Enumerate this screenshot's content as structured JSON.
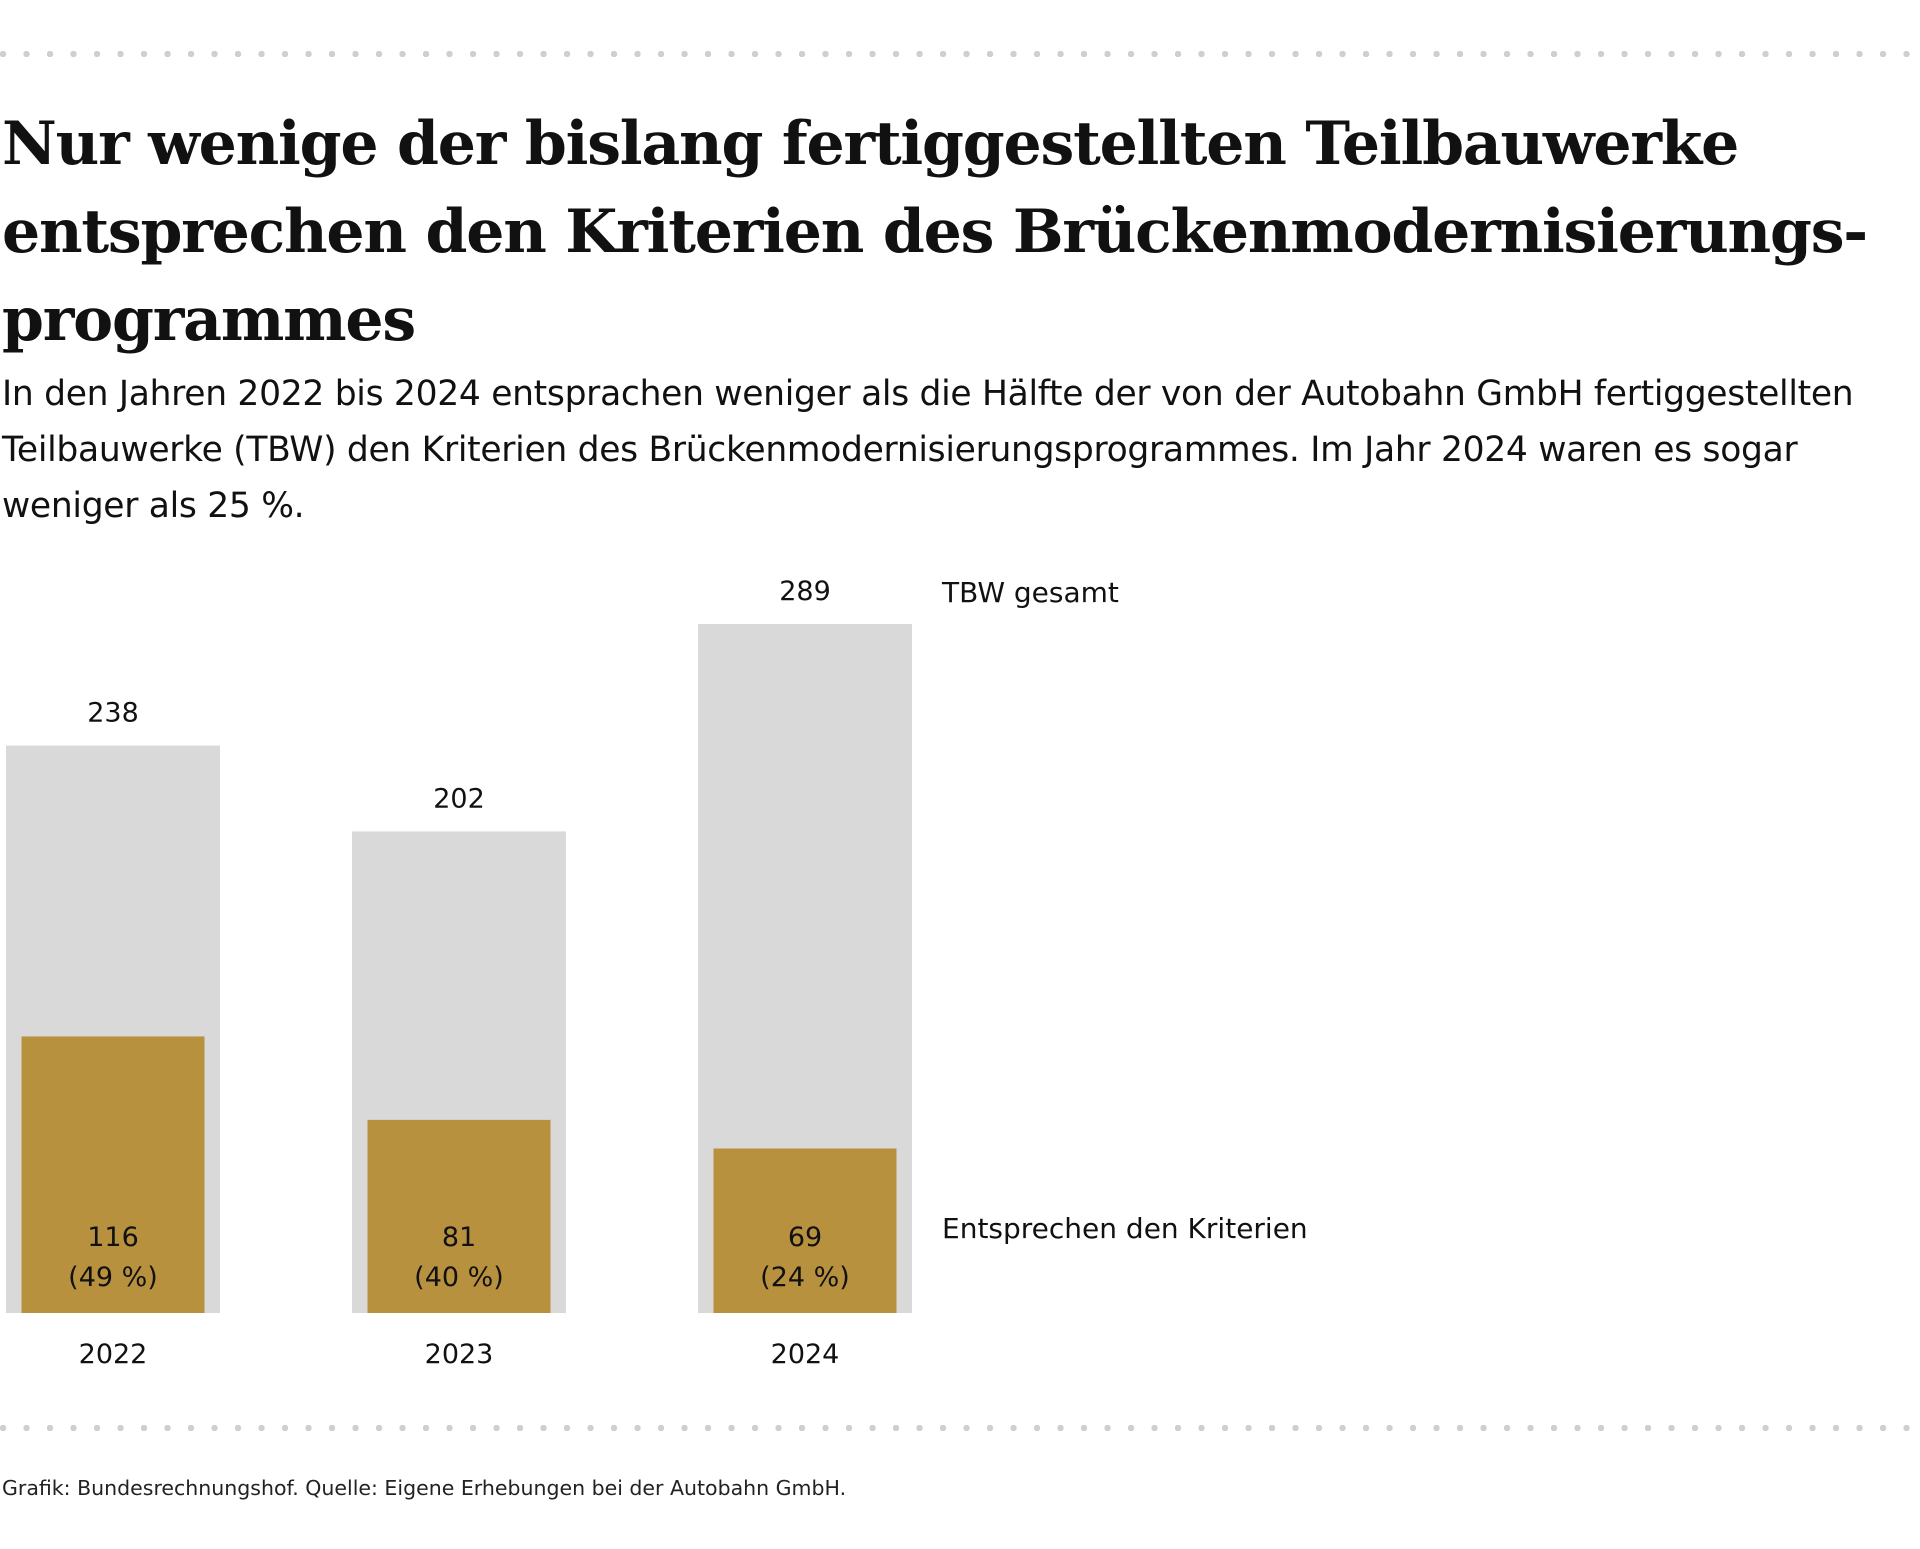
{
  "title": "Nur wenige der bislang fertiggestellten Teilbauwerke entsprechen den Kriterien des Brückenmodernisierungs­programmes",
  "subtitle": "In den Jahren 2022 bis 2024 entsprachen weniger als die Hälfte der von der Autobahn GmbH fertigge­stellten Teilbauwerke (TBW) den Kriterien des Brückenmodernisierungsprogrammes. Im Jahr 2024 waren es sogar weniger als 25 %.",
  "source": "Grafik: Bundesrechnungshof. Quelle: Eigene Erhebungen bei der Autobahn GmbH.",
  "colors": {
    "total_bar": "#d9d9d9",
    "criteria_bar": "#b8913f",
    "text": "#111111",
    "dotted_rule": "#cfcfcf"
  },
  "chart_data": {
    "type": "bar",
    "categories": [
      "2022",
      "2023",
      "2024"
    ],
    "series": [
      {
        "name": "TBW gesamt",
        "values": [
          238,
          202,
          289
        ],
        "labels": [
          "238",
          "202",
          "289"
        ],
        "color": "#d9d9d9"
      },
      {
        "name": "Entsprechen den Kriterien",
        "values": [
          116,
          81,
          69
        ],
        "labels": [
          "116",
          "81",
          "69"
        ],
        "share_labels": [
          "(49 %)",
          "(40 %)",
          "(24 %)"
        ],
        "color": "#b8913f"
      }
    ],
    "ylim": [
      0,
      289
    ],
    "grid": false,
    "axis_lines": false,
    "legend": "direct labels right of last bar"
  }
}
